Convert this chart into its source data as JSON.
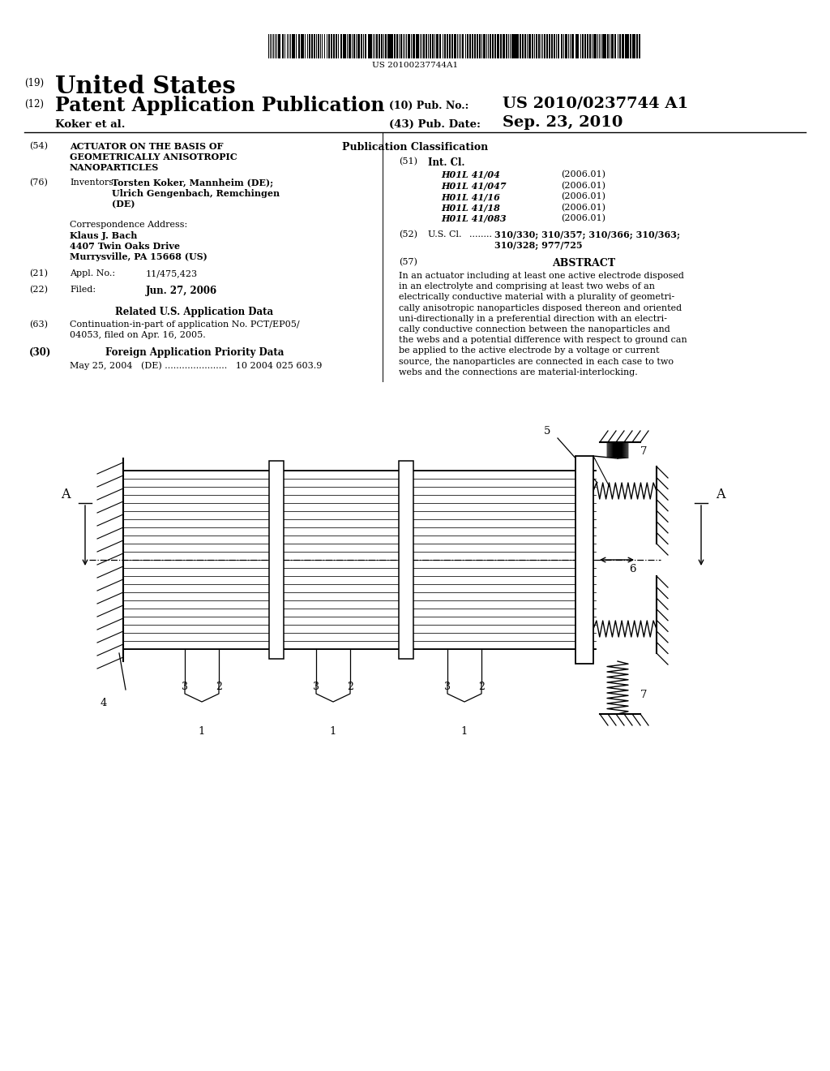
{
  "bg_color": "#ffffff",
  "barcode_text": "US 20100237744A1",
  "header": {
    "country_prefix": "(19)",
    "country": "United States",
    "pub_type_prefix": "(12)",
    "pub_type": "Patent Application Publication",
    "pub_no_prefix": "(10) Pub. No.:",
    "pub_no": "US 2010/0237744 A1",
    "authors": "Koker et al.",
    "pub_date_prefix": "(43) Pub. Date:",
    "pub_date": "Sep. 23, 2010"
  },
  "left_col": {
    "title_num": "(54)",
    "title_line1": "ACTUATOR ON THE BASIS OF",
    "title_line2": "GEOMETRICALLY ANISOTROPIC",
    "title_line3": "NANOPARTICLES",
    "inventors_num": "(76)",
    "inventors_label": "Inventors:",
    "inventor1": "Torsten Koker, Mannheim (DE);",
    "inventor2": "Ulrich Gengenbach, Remchingen",
    "inventor3": "(DE)",
    "corr_label": "Correspondence Address:",
    "corr_name": "Klaus J. Bach",
    "corr_addr1": "4407 Twin Oaks Drive",
    "corr_addr2": "Murrysville, PA 15668 (US)",
    "appl_num": "(21)",
    "appl_label": "Appl. No.:",
    "appl_val": "11/475,423",
    "filed_num": "(22)",
    "filed_label": "Filed:",
    "filed_val": "Jun. 27, 2006",
    "rel_label": "Related U.S. Application Data",
    "cont_num": "(63)",
    "cont_line1": "Continuation-in-part of application No. PCT/EP05/",
    "cont_line2": "04053, filed on Apr. 16, 2005.",
    "foreign_num": "(30)",
    "foreign_title": "Foreign Application Priority Data",
    "foreign_line": "May 25, 2004   (DE) ......................   10 2004 025 603.9"
  },
  "right_col": {
    "pub_class_title": "Publication Classification",
    "int_cl_num": "(51)",
    "int_cl_label": "Int. Cl.",
    "cls": [
      "H01L 41/04",
      "H01L 41/047",
      "H01L 41/16",
      "H01L 41/18",
      "H01L 41/083"
    ],
    "cls_years": [
      "(2006.01)",
      "(2006.01)",
      "(2006.01)",
      "(2006.01)",
      "(2006.01)"
    ],
    "us_cl_num": "(52)",
    "us_cl_label": "U.S. Cl.",
    "us_cl_dots": "........",
    "us_cl_line1": "310/330; 310/357; 310/366; 310/363;",
    "us_cl_line2": "310/328; 977/725",
    "abstract_num": "(57)",
    "abstract_title": "ABSTRACT",
    "abstract_lines": [
      "In an actuator including at least one active electrode disposed",
      "in an electrolyte and comprising at least two webs of an",
      "electrically conductive material with a plurality of geometri-",
      "cally anisotropic nanoparticles disposed thereon and oriented",
      "uni-directionally in a preferential direction with an electri-",
      "cally conductive connection between the nanoparticles and",
      "the webs and a potential difference with respect to ground can",
      "be applied to the active electrode by a voltage or current",
      "source, the nanoparticles are connected in each case to two",
      "webs and the connections are material-interlocking."
    ]
  }
}
